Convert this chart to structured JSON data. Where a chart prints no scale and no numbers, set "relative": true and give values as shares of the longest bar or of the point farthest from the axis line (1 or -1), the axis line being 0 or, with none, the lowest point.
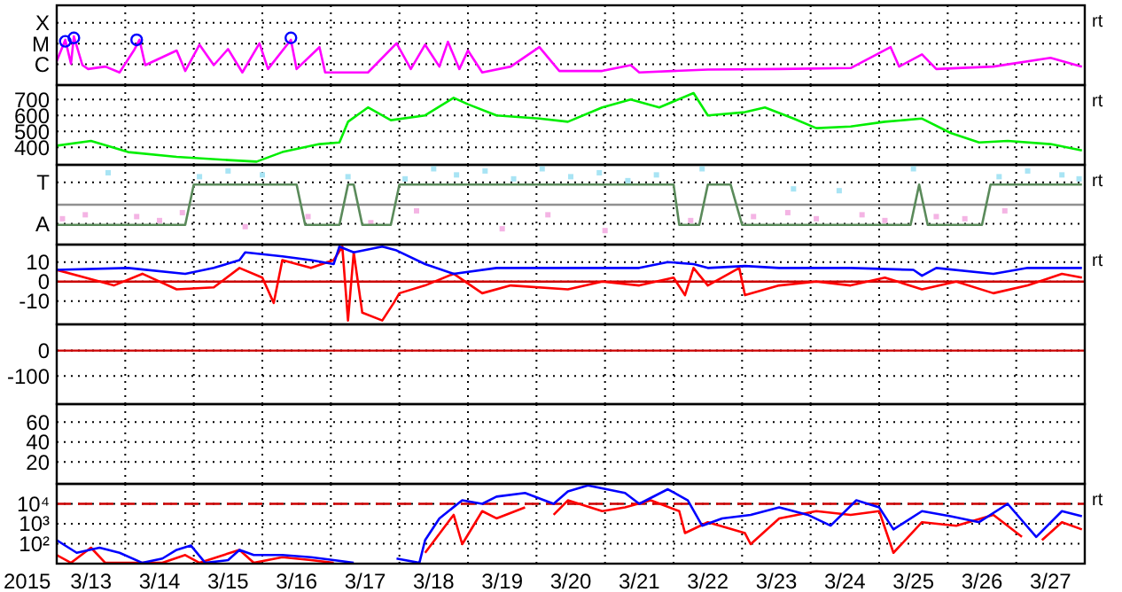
{
  "chart_data": [
    {
      "type": "line",
      "relative": true,
      "xlim": [
        "2015-03-13T00:00",
        "2015-03-28T00:00"
      ],
      "xticks": [
        {
          "value": "2015-03-14T00:00",
          "label": null
        },
        {
          "value": "2015-03-15T00:00",
          "label": null
        },
        {
          "value": "2015-03-16T00:00",
          "label": null
        },
        {
          "value": "2015-03-17T00:00",
          "label": null
        },
        {
          "value": "2015-03-18T00:00",
          "label": null
        },
        {
          "value": "2015-03-19T00:00",
          "label": null
        },
        {
          "value": "2015-03-20T00:00",
          "label": null
        },
        {
          "value": "2015-03-21T00:00",
          "label": null
        },
        {
          "value": "2015-03-22T00:00",
          "label": null
        },
        {
          "value": "2015-03-23T00:00",
          "label": null
        },
        {
          "value": "2015-03-24T00:00",
          "label": null
        },
        {
          "value": "2015-03-25T00:00",
          "label": null
        },
        {
          "value": "2015-03-26T00:00",
          "label": null
        },
        {
          "value": "2015-03-27T00:00",
          "label": null
        }
      ],
      "grid": true,
      "tick_labels": "y",
      "annotations": [
        "X",
        "M",
        "C",
        "rt"
      ],
      "series": [
        {
          "color": "#ff00ff",
          "x": [
            "2015-03-13T00:00",
            "2015-03-13T03:00",
            "2015-03-13T05:00",
            "2015-03-13T06:00",
            "2015-03-13T09:00",
            "2015-03-13T11:00",
            "2015-03-13T17:00",
            "2015-03-13T22:00",
            "2015-03-14T03:00",
            "2015-03-14T05:00",
            "2015-03-14T07:00",
            "2015-03-14T18:00",
            "2015-03-14T21:00",
            "2015-03-15T02:00",
            "2015-03-15T07:00",
            "2015-03-15T12:00",
            "2015-03-15T17:00",
            "2015-03-15T23:00",
            "2015-03-16T02:00",
            "2015-03-16T10:00",
            "2015-03-16T12:00",
            "2015-03-16T20:00",
            "2015-03-16T22:00",
            "2015-03-17T13:00",
            "2015-03-17T23:00",
            "2015-03-18T04:00",
            "2015-03-18T09:00",
            "2015-03-18T14:00",
            "2015-03-18T17:00",
            "2015-03-18T21:00",
            "2015-03-19T00:00",
            "2015-03-19T05:00",
            "2015-03-19T15:00",
            "2015-03-20T01:00",
            "2015-03-20T08:00",
            "2015-03-20T23:00",
            "2015-03-21T09:00",
            "2015-03-21T12:00",
            "2015-03-22T12:00",
            "2015-03-23T13:00",
            "2015-03-24T14:00",
            "2015-03-25T04:00",
            "2015-03-25T07:00",
            "2015-03-25T15:00",
            "2015-03-25T20:00",
            "2015-03-26T16:00",
            "2015-03-27T12:00",
            "2015-03-27T23:00"
          ],
          "values": [
            0.49,
            0.93,
            0.44,
            1,
            0.41,
            0.33,
            0.38,
            0.26,
            0.71,
            0.93,
            0.41,
            0.71,
            0.29,
            0.83,
            0.41,
            0.74,
            0.26,
            0.86,
            0.33,
            0.93,
            0.33,
            0.78,
            0.26,
            0.26,
            0.86,
            0.33,
            0.83,
            0.38,
            0.89,
            0.33,
            0.71,
            0.26,
            0.38,
            0.78,
            0.29,
            0.29,
            0.41,
            0.26,
            0.32,
            0.33,
            0.35,
            0.78,
            0.38,
            0.63,
            0.33,
            0.38,
            0.56,
            0.38
          ]
        },
        {
          "type": "scatter",
          "color": "#0000ff",
          "marker": "circle",
          "x": [
            "2015-03-13T03:00",
            "2015-03-13T06:00",
            "2015-03-14T04:00",
            "2015-03-16T10:00"
          ],
          "values": [
            0.9,
            0.97,
            0.93,
            0.97
          ]
        }
      ]
    },
    {
      "type": "line",
      "xlim": [
        "2015-03-13T00:00",
        "2015-03-28T00:00"
      ],
      "xticks": [
        {
          "value": "2015-03-14T00:00",
          "label": null
        },
        {
          "value": "2015-03-15T00:00",
          "label": null
        },
        {
          "value": "2015-03-16T00:00",
          "label": null
        },
        {
          "value": "2015-03-17T00:00",
          "label": null
        },
        {
          "value": "2015-03-18T00:00",
          "label": null
        },
        {
          "value": "2015-03-19T00:00",
          "label": null
        },
        {
          "value": "2015-03-20T00:00",
          "label": null
        },
        {
          "value": "2015-03-21T00:00",
          "label": null
        },
        {
          "value": "2015-03-22T00:00",
          "label": null
        },
        {
          "value": "2015-03-23T00:00",
          "label": null
        },
        {
          "value": "2015-03-24T00:00",
          "label": null
        },
        {
          "value": "2015-03-25T00:00",
          "label": null
        },
        {
          "value": "2015-03-26T00:00",
          "label": null
        },
        {
          "value": "2015-03-27T00:00",
          "label": null
        }
      ],
      "ylim": [
        290,
        790
      ],
      "yticks": [
        400,
        500,
        600,
        700
      ],
      "grid": true,
      "tick_labels": "y",
      "annotations": [
        "rt"
      ],
      "series": [
        {
          "color": "#00ee00",
          "x": [
            "2015-03-13T00:00",
            "2015-03-13T12:00",
            "2015-03-14T01:00",
            "2015-03-14T18:00",
            "2015-03-15T12:00",
            "2015-03-15T22:00",
            "2015-03-16T07:00",
            "2015-03-16T20:00",
            "2015-03-17T03:00",
            "2015-03-17T06:00",
            "2015-03-17T13:00",
            "2015-03-17T21:00",
            "2015-03-18T09:00",
            "2015-03-18T19:00",
            "2015-03-19T00:00",
            "2015-03-19T10:00",
            "2015-03-20T01:00",
            "2015-03-20T11:00",
            "2015-03-20T23:00",
            "2015-03-21T09:00",
            "2015-03-21T19:00",
            "2015-03-22T07:00",
            "2015-03-22T12:00",
            "2015-03-23T01:00",
            "2015-03-23T08:00",
            "2015-03-23T18:00",
            "2015-03-24T02:00",
            "2015-03-24T14:00",
            "2015-03-25T02:00",
            "2015-03-25T15:00",
            "2015-03-26T01:00",
            "2015-03-26T11:00",
            "2015-03-26T21:00",
            "2015-03-27T12:00",
            "2015-03-27T23:00"
          ],
          "values": [
            410,
            440,
            370,
            340,
            320,
            310,
            370,
            420,
            430,
            560,
            650,
            570,
            600,
            710,
            670,
            600,
            580,
            560,
            650,
            700,
            650,
            740,
            600,
            620,
            650,
            580,
            520,
            530,
            560,
            580,
            490,
            430,
            440,
            420,
            380
          ]
        }
      ]
    },
    {
      "type": "scatter",
      "relative": true,
      "xlim": [
        "2015-03-13T00:00",
        "2015-03-28T00:00"
      ],
      "xticks": [
        {
          "value": "2015-03-14T00:00",
          "label": null
        },
        {
          "value": "2015-03-15T00:00",
          "label": null
        },
        {
          "value": "2015-03-16T00:00",
          "label": null
        },
        {
          "value": "2015-03-17T00:00",
          "label": null
        },
        {
          "value": "2015-03-18T00:00",
          "label": null
        },
        {
          "value": "2015-03-19T00:00",
          "label": null
        },
        {
          "value": "2015-03-20T00:00",
          "label": null
        },
        {
          "value": "2015-03-21T00:00",
          "label": null
        },
        {
          "value": "2015-03-22T00:00",
          "label": null
        },
        {
          "value": "2015-03-23T00:00",
          "label": null
        },
        {
          "value": "2015-03-24T00:00",
          "label": null
        },
        {
          "value": "2015-03-25T00:00",
          "label": null
        },
        {
          "value": "2015-03-26T00:00",
          "label": null
        },
        {
          "value": "2015-03-27T00:00",
          "label": null
        }
      ],
      "grid": true,
      "tick_labels": "y",
      "annotations": [
        "T",
        "A",
        "rt"
      ],
      "ref_lines": [
        {
          "axis": "y",
          "value": 0,
          "color": "#909090"
        }
      ],
      "series": [
        {
          "color": "#a8e4f4",
          "marker": "square",
          "x": [
            "2015-03-13T18:00",
            "2015-03-15T02:00",
            "2015-03-15T12:00",
            "2015-03-16T00:00",
            "2015-03-17T06:00",
            "2015-03-18T02:00",
            "2015-03-18T12:00",
            "2015-03-18T20:00",
            "2015-03-19T06:00",
            "2015-03-19T16:00",
            "2015-03-20T02:00",
            "2015-03-20T12:00",
            "2015-03-20T22:00",
            "2015-03-21T08:00",
            "2015-03-21T18:00",
            "2015-03-22T10:00",
            "2015-03-23T18:00",
            "2015-03-24T10:00",
            "2015-03-25T12:00",
            "2015-03-26T18:00",
            "2015-03-27T04:00",
            "2015-03-27T16:00",
            "2015-03-27T22:00"
          ],
          "values": [
            0.89,
            0.78,
            0.94,
            0.83,
            0.78,
            0.72,
            1,
            0.83,
            0.94,
            0.72,
            1,
            0.78,
            0.89,
            0.67,
            0.83,
            1,
            0.44,
            0.39,
            1,
            0.78,
            0.94,
            0.83,
            0.72
          ]
        },
        {
          "color": "#f4b4e4",
          "marker": "square",
          "x": [
            "2015-03-13T02:00",
            "2015-03-13T10:00",
            "2015-03-13T18:00",
            "2015-03-14T04:00",
            "2015-03-14T12:00",
            "2015-03-14T20:00",
            "2015-03-15T18:00",
            "2015-03-16T16:00",
            "2015-03-17T14:00",
            "2015-03-18T06:00",
            "2015-03-19T12:00",
            "2015-03-20T04:00",
            "2015-03-21T00:00",
            "2015-03-22T06:00",
            "2015-03-23T04:00",
            "2015-03-23T16:00",
            "2015-03-24T02:00",
            "2015-03-24T18:00",
            "2015-03-25T02:00",
            "2015-03-25T20:00",
            "2015-03-26T06:00",
            "2015-03-26T20:00"
          ],
          "values": [
            -0.39,
            -0.28,
            null,
            -0.33,
            -0.44,
            -0.22,
            -0.61,
            -0.33,
            -0.5,
            -0.17,
            -0.67,
            -0.28,
            -0.72,
            -0.44,
            -0.33,
            -0.22,
            -0.39,
            -0.28,
            -0.44,
            -0.33,
            -0.39,
            -0.17
          ]
        },
        {
          "type": "line",
          "color": "#5a8a5a",
          "x": [
            "2015-03-13T00:00",
            "2015-03-14T21:00",
            "2015-03-15T00:00",
            "2015-03-16T12:00",
            "2015-03-16T15:00",
            "2015-03-17T03:00",
            "2015-03-17T06:00",
            "2015-03-17T08:00",
            "2015-03-17T11:00",
            "2015-03-17T21:00",
            "2015-03-18T00:00",
            "2015-03-22T00:00",
            "2015-03-22T02:00",
            "2015-03-22T09:00",
            "2015-03-22T12:00",
            "2015-03-22T20:00",
            "2015-03-23T00:00",
            "2015-03-25T11:00",
            "2015-03-25T14:00",
            "2015-03-25T17:00",
            "2015-03-26T12:00",
            "2015-03-26T15:00",
            "2015-03-27T23:00"
          ],
          "values": [
            -0.56,
            -0.56,
            0.56,
            0.56,
            -0.56,
            -0.56,
            0.56,
            0.56,
            -0.56,
            -0.56,
            0.56,
            0.56,
            -0.56,
            -0.56,
            0.56,
            0.56,
            -0.56,
            -0.56,
            0.56,
            -0.56,
            -0.56,
            0.56,
            0.56
          ]
        }
      ]
    },
    {
      "type": "line",
      "xlim": [
        "2015-03-13T00:00",
        "2015-03-28T00:00"
      ],
      "xticks": [
        {
          "value": "2015-03-14T00:00",
          "label": null
        },
        {
          "value": "2015-03-15T00:00",
          "label": null
        },
        {
          "value": "2015-03-16T00:00",
          "label": null
        },
        {
          "value": "2015-03-17T00:00",
          "label": null
        },
        {
          "value": "2015-03-18T00:00",
          "label": null
        },
        {
          "value": "2015-03-19T00:00",
          "label": null
        },
        {
          "value": "2015-03-20T00:00",
          "label": null
        },
        {
          "value": "2015-03-21T00:00",
          "label": null
        },
        {
          "value": "2015-03-22T00:00",
          "label": null
        },
        {
          "value": "2015-03-23T00:00",
          "label": null
        },
        {
          "value": "2015-03-24T00:00",
          "label": null
        },
        {
          "value": "2015-03-25T00:00",
          "label": null
        },
        {
          "value": "2015-03-26T00:00",
          "label": null
        },
        {
          "value": "2015-03-27T00:00",
          "label": null
        }
      ],
      "ylim": [
        -22,
        19
      ],
      "yticks": [
        10,
        0,
        -10
      ],
      "grid": true,
      "tick_labels": "y",
      "annotations": [
        "rt"
      ],
      "ref_lines": [
        {
          "axis": "y",
          "value": 0,
          "color": "#cc0000"
        }
      ],
      "series": [
        {
          "color": "#ff0000",
          "x": [
            "2015-03-13T00:00",
            "2015-03-13T10:00",
            "2015-03-13T20:00",
            "2015-03-14T06:00",
            "2015-03-14T18:00",
            "2015-03-15T07:00",
            "2015-03-15T16:00",
            "2015-03-16T00:00",
            "2015-03-16T04:00",
            "2015-03-16T07:00",
            "2015-03-16T17:00",
            "2015-03-17T01:00",
            "2015-03-17T04:00",
            "2015-03-17T06:00",
            "2015-03-17T08:00",
            "2015-03-17T11:00",
            "2015-03-17T18:00",
            "2015-03-17T22:00",
            "2015-03-18T00:00",
            "2015-03-18T09:00",
            "2015-03-18T19:00",
            "2015-03-19T05:00",
            "2015-03-19T15:00",
            "2015-03-20T11:00",
            "2015-03-20T23:00",
            "2015-03-21T12:00",
            "2015-03-22T00:00",
            "2015-03-22T04:00",
            "2015-03-22T07:00",
            "2015-03-22T12:00",
            "2015-03-22T23:00",
            "2015-03-23T01:00",
            "2015-03-23T13:00",
            "2015-03-24T02:00",
            "2015-03-24T14:00",
            "2015-03-25T02:00",
            "2015-03-25T15:00",
            "2015-03-26T03:00",
            "2015-03-26T16:00",
            "2015-03-27T04:00",
            "2015-03-27T16:00",
            "2015-03-27T23:00"
          ],
          "values": [
            6,
            2,
            -2,
            4,
            -4,
            -3,
            7,
            2,
            -11,
            11,
            7,
            11,
            18,
            -20,
            15,
            -16,
            -20,
            -11,
            -6,
            -2,
            4,
            -6,
            -2,
            -4,
            0,
            -2,
            2,
            -7,
            7,
            -2,
            7,
            -7,
            -2,
            0,
            -2,
            2,
            -4,
            0,
            -6,
            -2,
            4,
            2
          ]
        },
        {
          "color": "#0000ff",
          "x": [
            "2015-03-13T00:00",
            "2015-03-14T01:00",
            "2015-03-14T21:00",
            "2015-03-15T07:00",
            "2015-03-15T16:00",
            "2015-03-15T18:00",
            "2015-03-16T07:00",
            "2015-03-16T17:00",
            "2015-03-17T01:00",
            "2015-03-17T03:00",
            "2015-03-17T08:00",
            "2015-03-17T18:00",
            "2015-03-17T23:00",
            "2015-03-18T09:00",
            "2015-03-18T19:00",
            "2015-03-19T10:00",
            "2015-03-20T11:00",
            "2015-03-21T12:00",
            "2015-03-21T22:00",
            "2015-03-22T07:00",
            "2015-03-22T12:00",
            "2015-03-23T01:00",
            "2015-03-23T13:00",
            "2015-03-24T14:00",
            "2015-03-25T12:00",
            "2015-03-25T15:00",
            "2015-03-25T20:00",
            "2015-03-26T16:00",
            "2015-03-27T04:00",
            "2015-03-27T23:00"
          ],
          "values": [
            6,
            7,
            4,
            7,
            11,
            15,
            13,
            11,
            9,
            18,
            15,
            18,
            16,
            9,
            4,
            7,
            7,
            7,
            10,
            9,
            7,
            8,
            7,
            7,
            6,
            3,
            7,
            4,
            7,
            7
          ]
        }
      ]
    },
    {
      "type": "line",
      "xlim": [
        "2015-03-13T00:00",
        "2015-03-28T00:00"
      ],
      "xticks": [
        {
          "value": "2015-03-14T00:00",
          "label": null
        },
        {
          "value": "2015-03-15T00:00",
          "label": null
        },
        {
          "value": "2015-03-16T00:00",
          "label": null
        },
        {
          "value": "2015-03-17T00:00",
          "label": null
        },
        {
          "value": "2015-03-18T00:00",
          "label": null
        },
        {
          "value": "2015-03-19T00:00",
          "label": null
        },
        {
          "value": "2015-03-20T00:00",
          "label": null
        },
        {
          "value": "2015-03-21T00:00",
          "label": null
        },
        {
          "value": "2015-03-22T00:00",
          "label": null
        },
        {
          "value": "2015-03-23T00:00",
          "label": null
        },
        {
          "value": "2015-03-24T00:00",
          "label": null
        },
        {
          "value": "2015-03-25T00:00",
          "label": null
        },
        {
          "value": "2015-03-26T00:00",
          "label": null
        },
        {
          "value": "2015-03-27T00:00",
          "label": null
        }
      ],
      "ylim": [
        -210,
        103
      ],
      "yticks": [
        0,
        -100
      ],
      "grid": true,
      "tick_labels": "y",
      "ref_lines": [
        {
          "axis": "y",
          "value": 0,
          "color": "#cc0000"
        }
      ]
    },
    {
      "type": "line",
      "xlim": [
        "2015-03-13T00:00",
        "2015-03-28T00:00"
      ],
      "xticks": [
        {
          "value": "2015-03-14T00:00",
          "label": null
        },
        {
          "value": "2015-03-15T00:00",
          "label": null
        },
        {
          "value": "2015-03-16T00:00",
          "label": null
        },
        {
          "value": "2015-03-17T00:00",
          "label": null
        },
        {
          "value": "2015-03-18T00:00",
          "label": null
        },
        {
          "value": "2015-03-19T00:00",
          "label": null
        },
        {
          "value": "2015-03-20T00:00",
          "label": null
        },
        {
          "value": "2015-03-21T00:00",
          "label": null
        },
        {
          "value": "2015-03-22T00:00",
          "label": null
        },
        {
          "value": "2015-03-23T00:00",
          "label": null
        },
        {
          "value": "2015-03-24T00:00",
          "label": null
        },
        {
          "value": "2015-03-25T00:00",
          "label": null
        },
        {
          "value": "2015-03-26T00:00",
          "label": null
        },
        {
          "value": "2015-03-27T00:00",
          "label": null
        }
      ],
      "ylim": [
        -2,
        78
      ],
      "yticks": [
        60,
        40,
        20
      ],
      "grid": true,
      "tick_labels": "y"
    },
    {
      "type": "line",
      "log": true,
      "xlabel": "2015",
      "xlim": [
        "2015-03-13T00:00",
        "2015-03-28T00:00"
      ],
      "xticks": [
        {
          "value": "2015-03-13T12:00",
          "label": "3/13"
        },
        {
          "value": "2015-03-14T12:00",
          "label": "3/14"
        },
        {
          "value": "2015-03-15T12:00",
          "label": "3/15"
        },
        {
          "value": "2015-03-16T12:00",
          "label": "3/16"
        },
        {
          "value": "2015-03-17T12:00",
          "label": "3/17"
        },
        {
          "value": "2015-03-18T12:00",
          "label": "3/18"
        },
        {
          "value": "2015-03-19T12:00",
          "label": "3/19"
        },
        {
          "value": "2015-03-20T12:00",
          "label": "3/20"
        },
        {
          "value": "2015-03-21T12:00",
          "label": "3/21"
        },
        {
          "value": "2015-03-22T12:00",
          "label": "3/22"
        },
        {
          "value": "2015-03-23T12:00",
          "label": "3/23"
        },
        {
          "value": "2015-03-24T12:00",
          "label": "3/24"
        },
        {
          "value": "2015-03-25T12:00",
          "label": "3/25"
        },
        {
          "value": "2015-03-26T12:00",
          "label": "3/26"
        },
        {
          "value": "2015-03-27T12:00",
          "label": "3/27"
        },
        {
          "value": "2015-03-14T00:00",
          "label": null
        },
        {
          "value": "2015-03-15T00:00",
          "label": null
        },
        {
          "value": "2015-03-16T00:00",
          "label": null
        },
        {
          "value": "2015-03-17T00:00",
          "label": null
        },
        {
          "value": "2015-03-18T00:00",
          "label": null
        },
        {
          "value": "2015-03-19T00:00",
          "label": null
        },
        {
          "value": "2015-03-20T00:00",
          "label": null
        },
        {
          "value": "2015-03-21T00:00",
          "label": null
        },
        {
          "value": "2015-03-22T00:00",
          "label": null
        },
        {
          "value": "2015-03-23T00:00",
          "label": null
        },
        {
          "value": "2015-03-24T00:00",
          "label": null
        },
        {
          "value": "2015-03-25T00:00",
          "label": null
        },
        {
          "value": "2015-03-26T00:00",
          "label": null
        },
        {
          "value": "2015-03-27T00:00",
          "label": null
        }
      ],
      "ylim": [
        10,
        100000
      ],
      "yticks": [
        {
          "value": 10000,
          "label": "10⁴"
        },
        {
          "value": 1000,
          "label": "10³"
        },
        {
          "value": 100,
          "label": "10²"
        }
      ],
      "grid": true,
      "annotations": [
        "rt"
      ],
      "ref_lines": [
        {
          "axis": "y",
          "value": 10000,
          "color": "#cc0000",
          "line_style": "dashed"
        }
      ],
      "series": [
        {
          "color": "#ff0000",
          "x": [
            "2015-03-13T00:00",
            "2015-03-13T05:00",
            "2015-03-13T12:00",
            "2015-03-13T17:00",
            "2015-03-14T13:00",
            "2015-03-14T21:00",
            "2015-03-15T02:00",
            "2015-03-15T16:00",
            "2015-03-15T21:00",
            "2015-03-16T07:00",
            "2015-03-16T17:00",
            "2015-03-17T01:00",
            "2015-03-17T12:00",
            "2015-03-18T09:00",
            "2015-03-18T19:00",
            "2015-03-18T22:00",
            "2015-03-19T05:00",
            "2015-03-19T10:00",
            "2015-03-19T20:00",
            "2015-03-20T01:00",
            "2015-03-20T06:00",
            "2015-03-20T11:00",
            "2015-03-20T23:00",
            "2015-03-21T07:00",
            "2015-03-21T16:00",
            "2015-03-22T02:00",
            "2015-03-22T04:00",
            "2015-03-22T12:00",
            "2015-03-23T01:00",
            "2015-03-23T03:00",
            "2015-03-23T13:00",
            "2015-03-24T02:00",
            "2015-03-24T14:00",
            "2015-03-25T00:00",
            "2015-03-25T05:00",
            "2015-03-25T15:00",
            "2015-03-26T03:00",
            "2015-03-26T16:00",
            "2015-03-27T02:00",
            "2015-03-27T04:00",
            "2015-03-27T09:00",
            "2015-03-27T16:00",
            "2015-03-27T23:00"
          ],
          "values": [
            27,
            11,
            63,
            11,
            11,
            27,
            11,
            49,
            11,
            21,
            15,
            11,
            null,
            35,
            2800,
            95,
            4300,
            1860,
            6600,
            null,
            2800,
            15000,
            4300,
            6600,
            15000,
            4300,
            340,
            1200,
            340,
            95,
            1860,
            4300,
            2800,
            4300,
            35,
            1200,
            800,
            2800,
            220,
            null,
            150,
            1200,
            520
          ]
        },
        {
          "color": "#0000ff",
          "x": [
            "2015-03-13T00:00",
            "2015-03-13T07:00",
            "2015-03-13T15:00",
            "2015-03-13T22:00",
            "2015-03-14T06:00",
            "2015-03-14T13:00",
            "2015-03-14T18:00",
            "2015-03-14T23:00",
            "2015-03-15T04:00",
            "2015-03-15T12:00",
            "2015-03-15T16:00",
            "2015-03-15T21:00",
            "2015-03-16T07:00",
            "2015-03-16T17:00",
            "2015-03-17T01:00",
            "2015-03-17T08:00",
            "2015-03-17T12:00",
            "2015-03-17T23:00",
            "2015-03-18T07:00",
            "2015-03-18T09:00",
            "2015-03-18T14:00",
            "2015-03-18T22:00",
            "2015-03-19T05:00",
            "2015-03-19T10:00",
            "2015-03-19T20:00",
            "2015-03-20T06:00",
            "2015-03-20T11:00",
            "2015-03-20T18:00",
            "2015-03-21T07:00",
            "2015-03-21T12:00",
            "2015-03-21T22:00",
            "2015-03-22T05:00",
            "2015-03-22T10:00",
            "2015-03-22T17:00",
            "2015-03-23T03:00",
            "2015-03-23T13:00",
            "2015-03-23T23:00",
            "2015-03-24T07:00",
            "2015-03-24T16:00",
            "2015-03-25T00:00",
            "2015-03-25T05:00",
            "2015-03-25T15:00",
            "2015-03-26T01:00",
            "2015-03-26T11:00",
            "2015-03-26T21:00",
            "2015-03-27T07:00",
            "2015-03-27T16:00",
            "2015-03-27T23:00"
          ],
          "values": [
            150,
            35,
            63,
            35,
            11,
            18,
            49,
            81,
            11,
            15,
            49,
            27,
            27,
            21,
            15,
            11,
            null,
            18,
            11,
            150,
            1860,
            15000,
            10000,
            23000,
            35000,
            10000,
            42000,
            83000,
            35000,
            10000,
            54000,
            15000,
            800,
            1860,
            2800,
            6600,
            2800,
            800,
            15000,
            6600,
            520,
            4300,
            2400,
            1200,
            10000,
            220,
            4300,
            2400
          ]
        }
      ]
    }
  ]
}
